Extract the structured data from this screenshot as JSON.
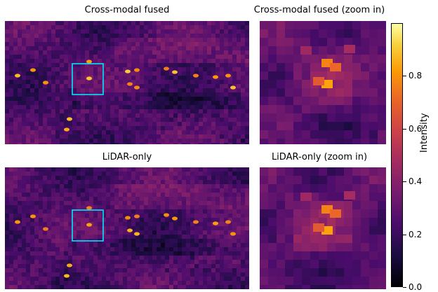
{
  "panels": [
    {
      "title": "Cross-modal fused",
      "kind": "full"
    },
    {
      "title": "Cross-modal fused (zoom in)",
      "kind": "zoom"
    },
    {
      "title": "LiDAR-only",
      "kind": "full"
    },
    {
      "title": "LiDAR-only (zoom in)",
      "kind": "zoom"
    }
  ],
  "colorbar": {
    "label": "Intensity",
    "ticks": [
      "0.0",
      "0.2",
      "0.4",
      "0.6",
      "0.8"
    ]
  },
  "colors": {
    "zoom_box": "#00e5ff",
    "colormap": "inferno"
  },
  "chart_data": {
    "type": "heatmap",
    "title": "",
    "colormap": "inferno",
    "colorbar_label": "Intensity",
    "colorbar_range": [
      0.0,
      1.0
    ],
    "colorbar_ticks": [
      0.0,
      0.2,
      0.4,
      0.6,
      0.8
    ],
    "subplots": [
      "Cross-modal fused",
      "Cross-modal fused (zoom in)",
      "LiDAR-only",
      "LiDAR-only (zoom in)"
    ]
  }
}
